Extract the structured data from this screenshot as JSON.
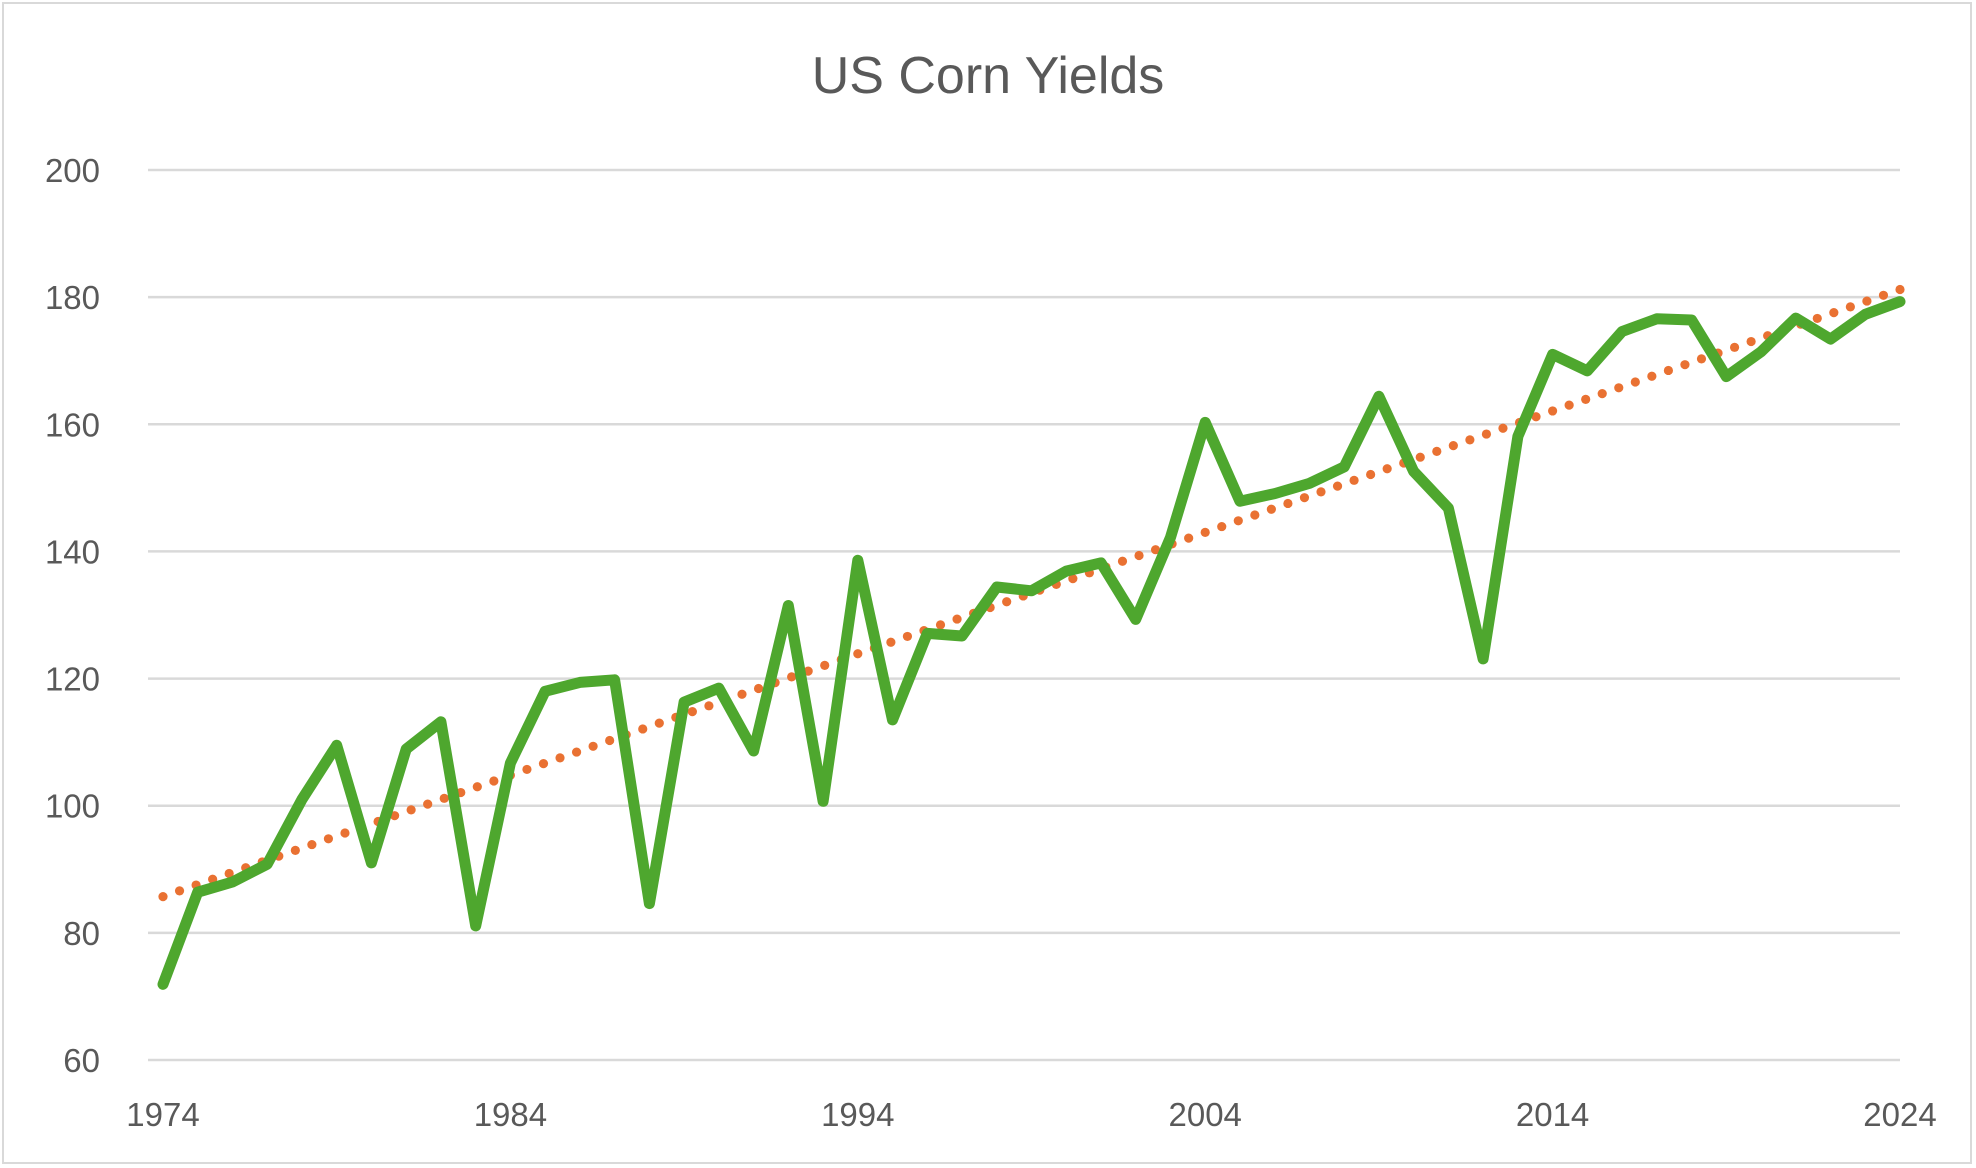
{
  "chart_data": {
    "type": "line",
    "title": "US Corn Yields",
    "xlabel": "",
    "ylabel": "",
    "xlim": [
      1974,
      2024
    ],
    "ylim": [
      60,
      200
    ],
    "y_ticks": [
      60,
      80,
      100,
      120,
      140,
      160,
      180,
      200
    ],
    "x_ticks": [
      1974,
      1984,
      1994,
      2004,
      2014,
      2024
    ],
    "grid": true,
    "legend": "none",
    "colors": {
      "series": "#4ea72e",
      "trend": "#e97132",
      "grid": "#d9d9d9",
      "text": "#595959"
    },
    "x": [
      1974,
      1975,
      1976,
      1977,
      1978,
      1979,
      1980,
      1981,
      1982,
      1983,
      1984,
      1985,
      1986,
      1987,
      1988,
      1989,
      1990,
      1991,
      1992,
      1993,
      1994,
      1995,
      1996,
      1997,
      1998,
      1999,
      2000,
      2001,
      2002,
      2003,
      2004,
      2005,
      2006,
      2007,
      2008,
      2009,
      2010,
      2011,
      2012,
      2013,
      2014,
      2015,
      2016,
      2017,
      2018,
      2019,
      2020,
      2021,
      2022,
      2023,
      2024
    ],
    "series": [
      {
        "values": [
          71.9,
          86.4,
          88.0,
          90.8,
          101.0,
          109.5,
          91.0,
          108.9,
          113.2,
          81.1,
          106.7,
          118.0,
          119.4,
          119.8,
          84.6,
          116.3,
          118.5,
          108.6,
          131.5,
          100.7,
          138.6,
          113.5,
          127.1,
          126.7,
          134.4,
          133.8,
          136.9,
          138.2,
          129.3,
          142.2,
          160.3,
          147.9,
          149.1,
          150.7,
          153.3,
          164.4,
          152.6,
          146.8,
          123.1,
          158.1,
          171.0,
          168.4,
          174.6,
          176.6,
          176.4,
          167.5,
          171.4,
          176.7,
          173.4,
          177.3,
          179.3
        ]
      }
    ],
    "trendline": {
      "type": "linear",
      "style": "dotted",
      "start": [
        1974,
        85.7
      ],
      "end": [
        2024,
        181.2
      ]
    }
  }
}
